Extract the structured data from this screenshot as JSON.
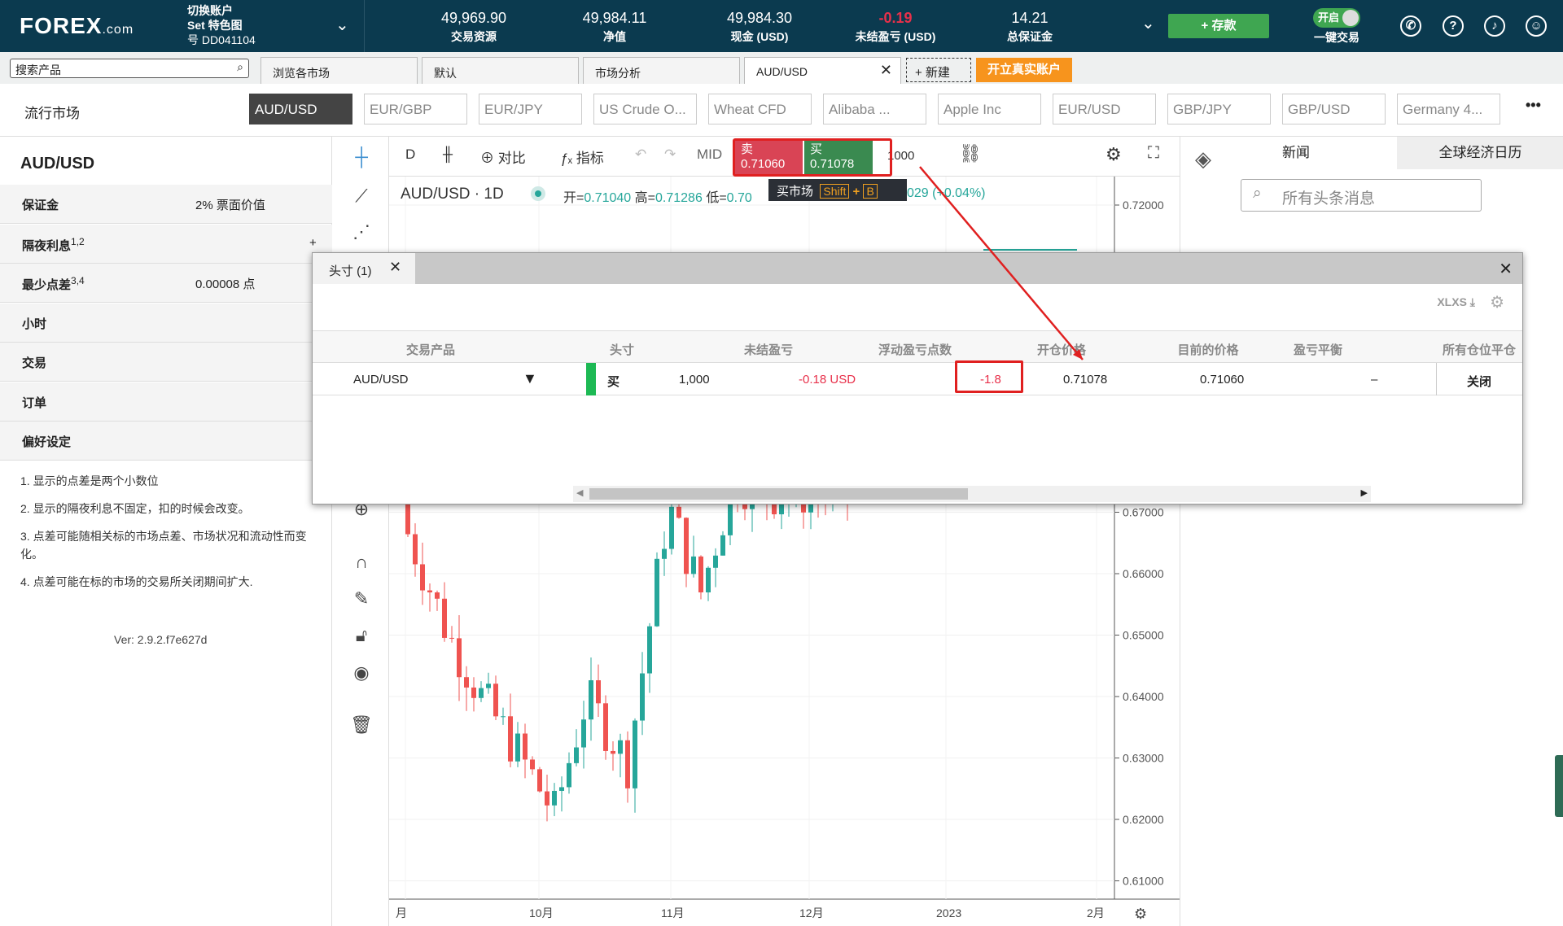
{
  "header": {
    "logo": "FOREX",
    "logo_suffix": ".com",
    "account_switch": "切换账户",
    "account_name": "Set 特色图",
    "account_no": "号 DD041104",
    "stats": [
      {
        "value": "49,969.90",
        "label": "交易资源"
      },
      {
        "value": "49,984.11",
        "label": "净值"
      },
      {
        "value": "49,984.30",
        "label": "现金 (USD)"
      },
      {
        "value": "-0.19",
        "label": "未结盈亏 (USD)",
        "color": "#e8304a"
      },
      {
        "value": "14.21",
        "label": "总保证金"
      }
    ],
    "deposit": "+ 存款",
    "toggle_state": "开启",
    "toggle_label": "一键交易",
    "icons": [
      "phone-icon",
      "help-icon",
      "bell-icon",
      "user-icon"
    ]
  },
  "tabs": {
    "search_placeholder": "搜索产品",
    "items": [
      "浏览各市场",
      "默认",
      "市场分析",
      "AUD/USD"
    ],
    "new": "+ 新建",
    "open_real": "开立真实账户"
  },
  "markets": {
    "label": "流行市场",
    "items": [
      "AUD/USD",
      "EUR/GBP",
      "EUR/JPY",
      "US Crude O...",
      "Wheat CFD",
      "Alibaba ...",
      "Apple Inc",
      "EUR/USD",
      "GBP/JPY",
      "GBP/USD",
      "Germany 4..."
    ],
    "more": "•••"
  },
  "left": {
    "title": "AUD/USD",
    "rows": [
      {
        "label": "保证金",
        "value": "2% 票面价值"
      },
      {
        "label": "隔夜利息",
        "sup": "1,2",
        "value": "+"
      },
      {
        "label": "最少点差",
        "sup": "3,4",
        "value": "0.00008 点"
      },
      {
        "label": "小时"
      },
      {
        "label": "交易"
      },
      {
        "label": "订单"
      },
      {
        "label": "偏好设定"
      }
    ],
    "notes": [
      "1. 显示的点差是两个小数位",
      "2. 显示的隔夜利息不固定，扣的时候会改变。",
      "3. 点差可能随相关标的市场点差、市场状况和流动性而变化。",
      "4. 点差可能在标的市场的交易所关闭期间扩大."
    ],
    "version": "Ver: 2.9.2.f7e627d"
  },
  "chart_toolbar": {
    "interval": "D",
    "compare": "对比",
    "indicators": "指标",
    "mid": "MID",
    "sell_label": "卖",
    "sell_price": "0.71060",
    "buy_label": "买",
    "buy_price": "0.71078",
    "quantity": "1000",
    "tooltip": "买市场",
    "tooltip_key1": "Shift",
    "tooltip_plus": "+",
    "tooltip_key2": "B"
  },
  "chart_head": {
    "symbol": "AUD/USD · 1D",
    "open_l": "开=",
    "open": "0.71040",
    "high_l": "高=",
    "high": "0.71286",
    "low_l": "低=",
    "low": "0.70",
    "change": "029 (+0.04%)"
  },
  "chart_data": {
    "type": "candlestick",
    "y_ticks": [
      "0.72000",
      "0.67000",
      "0.66000",
      "0.65000",
      "0.64000",
      "0.63000",
      "0.62000",
      "0.61000"
    ],
    "x_ticks": [
      "月",
      "10月",
      "11月",
      "12月",
      "2023",
      "2月"
    ],
    "ylim": [
      0.607,
      0.725
    ],
    "up_color": "#26a69a",
    "down_color": "#ef5350"
  },
  "right": {
    "tabs": [
      "新闻",
      "全球经济日历"
    ],
    "search_placeholder": "所有头条消息"
  },
  "positions": {
    "tab": "头寸 (1)",
    "export": "XLXS",
    "columns": [
      "交易产品",
      "头寸",
      "未结盈亏",
      "浮动盈亏点数",
      "开仓价格",
      "目前的价格",
      "盈亏平衡",
      "所有仓位平仓"
    ],
    "row": {
      "product": "AUD/USD",
      "side": "买",
      "size": "1,000",
      "pnl": "-0.18 USD",
      "pips": "-1.8",
      "open": "0.71078",
      "current": "0.71060",
      "breakeven": "–",
      "close": "关闭"
    }
  }
}
